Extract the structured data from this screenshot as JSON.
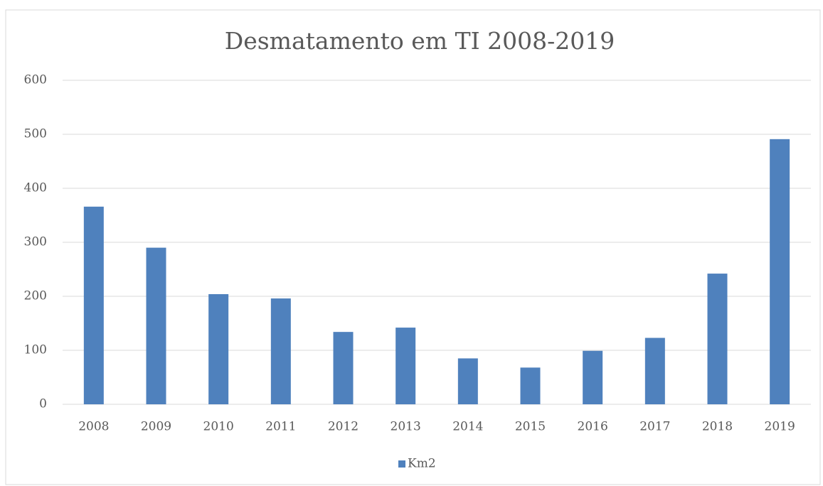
{
  "chart_data": {
    "type": "bar",
    "title": "Desmatamento em TI 2008-2019",
    "categories": [
      "2008",
      "2009",
      "2010",
      "2011",
      "2012",
      "2013",
      "2014",
      "2015",
      "2016",
      "2017",
      "2018",
      "2019"
    ],
    "series": [
      {
        "name": "Km2",
        "color": "#4f81bd",
        "values": [
          366,
          290,
          204,
          196,
          134,
          142,
          85,
          68,
          99,
          123,
          242,
          491
        ]
      }
    ],
    "ylim": [
      0,
      600
    ],
    "yticks": [
      0,
      100,
      200,
      300,
      400,
      500,
      600
    ],
    "grid": true,
    "legend": "bottom"
  }
}
